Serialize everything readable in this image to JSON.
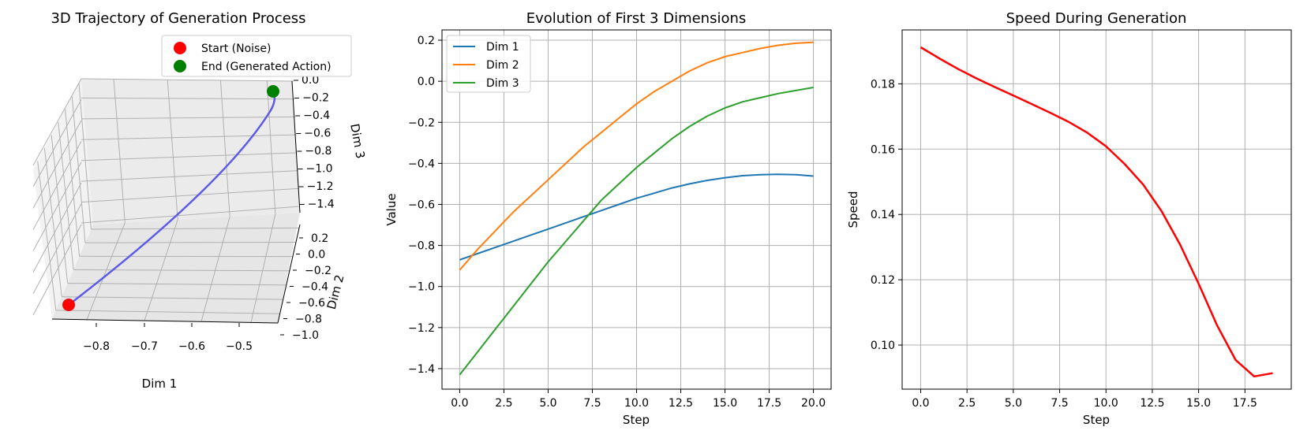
{
  "chart_data": [
    {
      "type": "line3d",
      "title": "3D Trajectory of Generation Process",
      "xlabel": "Dim 1",
      "ylabel": "Dim 2",
      "zlabel": "Dim 3",
      "x_ticks": [
        "−0.8",
        "−0.7",
        "−0.6",
        "−0.5"
      ],
      "y_ticks": [
        "0.2",
        "0.0",
        "−0.2",
        "−0.4",
        "−0.6",
        "−0.8",
        "−1.0"
      ],
      "z_ticks": [
        "0.0",
        "−0.2",
        "−0.4",
        "−0.6",
        "−0.8",
        "−1.0",
        "−1.2",
        "−1.4"
      ],
      "legend": [
        {
          "label": "Start (Noise)",
          "color": "#ff0000"
        },
        {
          "label": "End (Generated Action)",
          "color": "#008000"
        }
      ],
      "line_color": "#5b5bea",
      "grid": true
    },
    {
      "type": "line",
      "title": "Evolution of First 3 Dimensions",
      "xlabel": "Step",
      "ylabel": "Value",
      "xlim": [
        -1,
        21
      ],
      "ylim": [
        -1.5,
        0.25
      ],
      "x_ticks": [
        0,
        2.5,
        5,
        7.5,
        10,
        12.5,
        15,
        17.5,
        20
      ],
      "x_tick_labels": [
        "0.0",
        "2.5",
        "5.0",
        "7.5",
        "10.0",
        "12.5",
        "15.0",
        "17.5",
        "20.0"
      ],
      "y_ticks": [
        -1.4,
        -1.2,
        -1.0,
        -0.8,
        -0.6,
        -0.4,
        -0.2,
        0.0,
        0.2
      ],
      "y_tick_labels": [
        "−1.4",
        "−1.2",
        "−1.0",
        "−0.8",
        "−0.6",
        "−0.4",
        "−0.2",
        "0.0",
        "0.2"
      ],
      "x": [
        0,
        1,
        2,
        3,
        4,
        5,
        6,
        7,
        8,
        9,
        10,
        11,
        12,
        13,
        14,
        15,
        16,
        17,
        18,
        19,
        20
      ],
      "series": [
        {
          "name": "Dim 1",
          "color": "#1f77b4",
          "values": [
            -0.87,
            -0.84,
            -0.81,
            -0.78,
            -0.75,
            -0.72,
            -0.69,
            -0.66,
            -0.63,
            -0.6,
            -0.57,
            -0.545,
            -0.52,
            -0.5,
            -0.483,
            -0.47,
            -0.46,
            -0.455,
            -0.453,
            -0.455,
            -0.462
          ]
        },
        {
          "name": "Dim 2",
          "color": "#ff7f0e",
          "values": [
            -0.92,
            -0.82,
            -0.73,
            -0.64,
            -0.56,
            -0.48,
            -0.4,
            -0.32,
            -0.25,
            -0.18,
            -0.11,
            -0.05,
            0.0,
            0.05,
            0.09,
            0.12,
            0.14,
            0.16,
            0.175,
            0.185,
            0.19
          ]
        },
        {
          "name": "Dim 3",
          "color": "#2ca02c",
          "values": [
            -1.43,
            -1.32,
            -1.21,
            -1.1,
            -0.99,
            -0.88,
            -0.78,
            -0.68,
            -0.58,
            -0.5,
            -0.42,
            -0.35,
            -0.28,
            -0.22,
            -0.17,
            -0.13,
            -0.1,
            -0.08,
            -0.06,
            -0.045,
            -0.03
          ]
        }
      ],
      "legend_position": "upper left",
      "grid": true
    },
    {
      "type": "line",
      "title": "Speed During Generation",
      "xlabel": "Step",
      "ylabel": "Speed",
      "xlim": [
        -1,
        20
      ],
      "ylim": [
        0.0865,
        0.1965
      ],
      "x_ticks": [
        0,
        2.5,
        5,
        7.5,
        10,
        12.5,
        15,
        17.5
      ],
      "x_tick_labels": [
        "0.0",
        "2.5",
        "5.0",
        "7.5",
        "10.0",
        "12.5",
        "15.0",
        "17.5"
      ],
      "y_ticks": [
        0.1,
        0.12,
        0.14,
        0.16,
        0.18
      ],
      "y_tick_labels": [
        "0.10",
        "0.12",
        "0.14",
        "0.16",
        "0.18"
      ],
      "x": [
        0,
        1,
        2,
        3,
        4,
        5,
        6,
        7,
        8,
        9,
        10,
        11,
        12,
        13,
        14,
        15,
        16,
        17,
        18,
        19
      ],
      "series": [
        {
          "color": "#ff0000",
          "values": [
            0.1912,
            0.1878,
            0.1846,
            0.1817,
            0.179,
            0.1764,
            0.1738,
            0.1711,
            0.1683,
            0.165,
            0.1609,
            0.1555,
            0.1492,
            0.141,
            0.1308,
            0.1188,
            0.106,
            0.0954,
            0.0904,
            0.0914
          ]
        }
      ],
      "grid": true
    }
  ]
}
